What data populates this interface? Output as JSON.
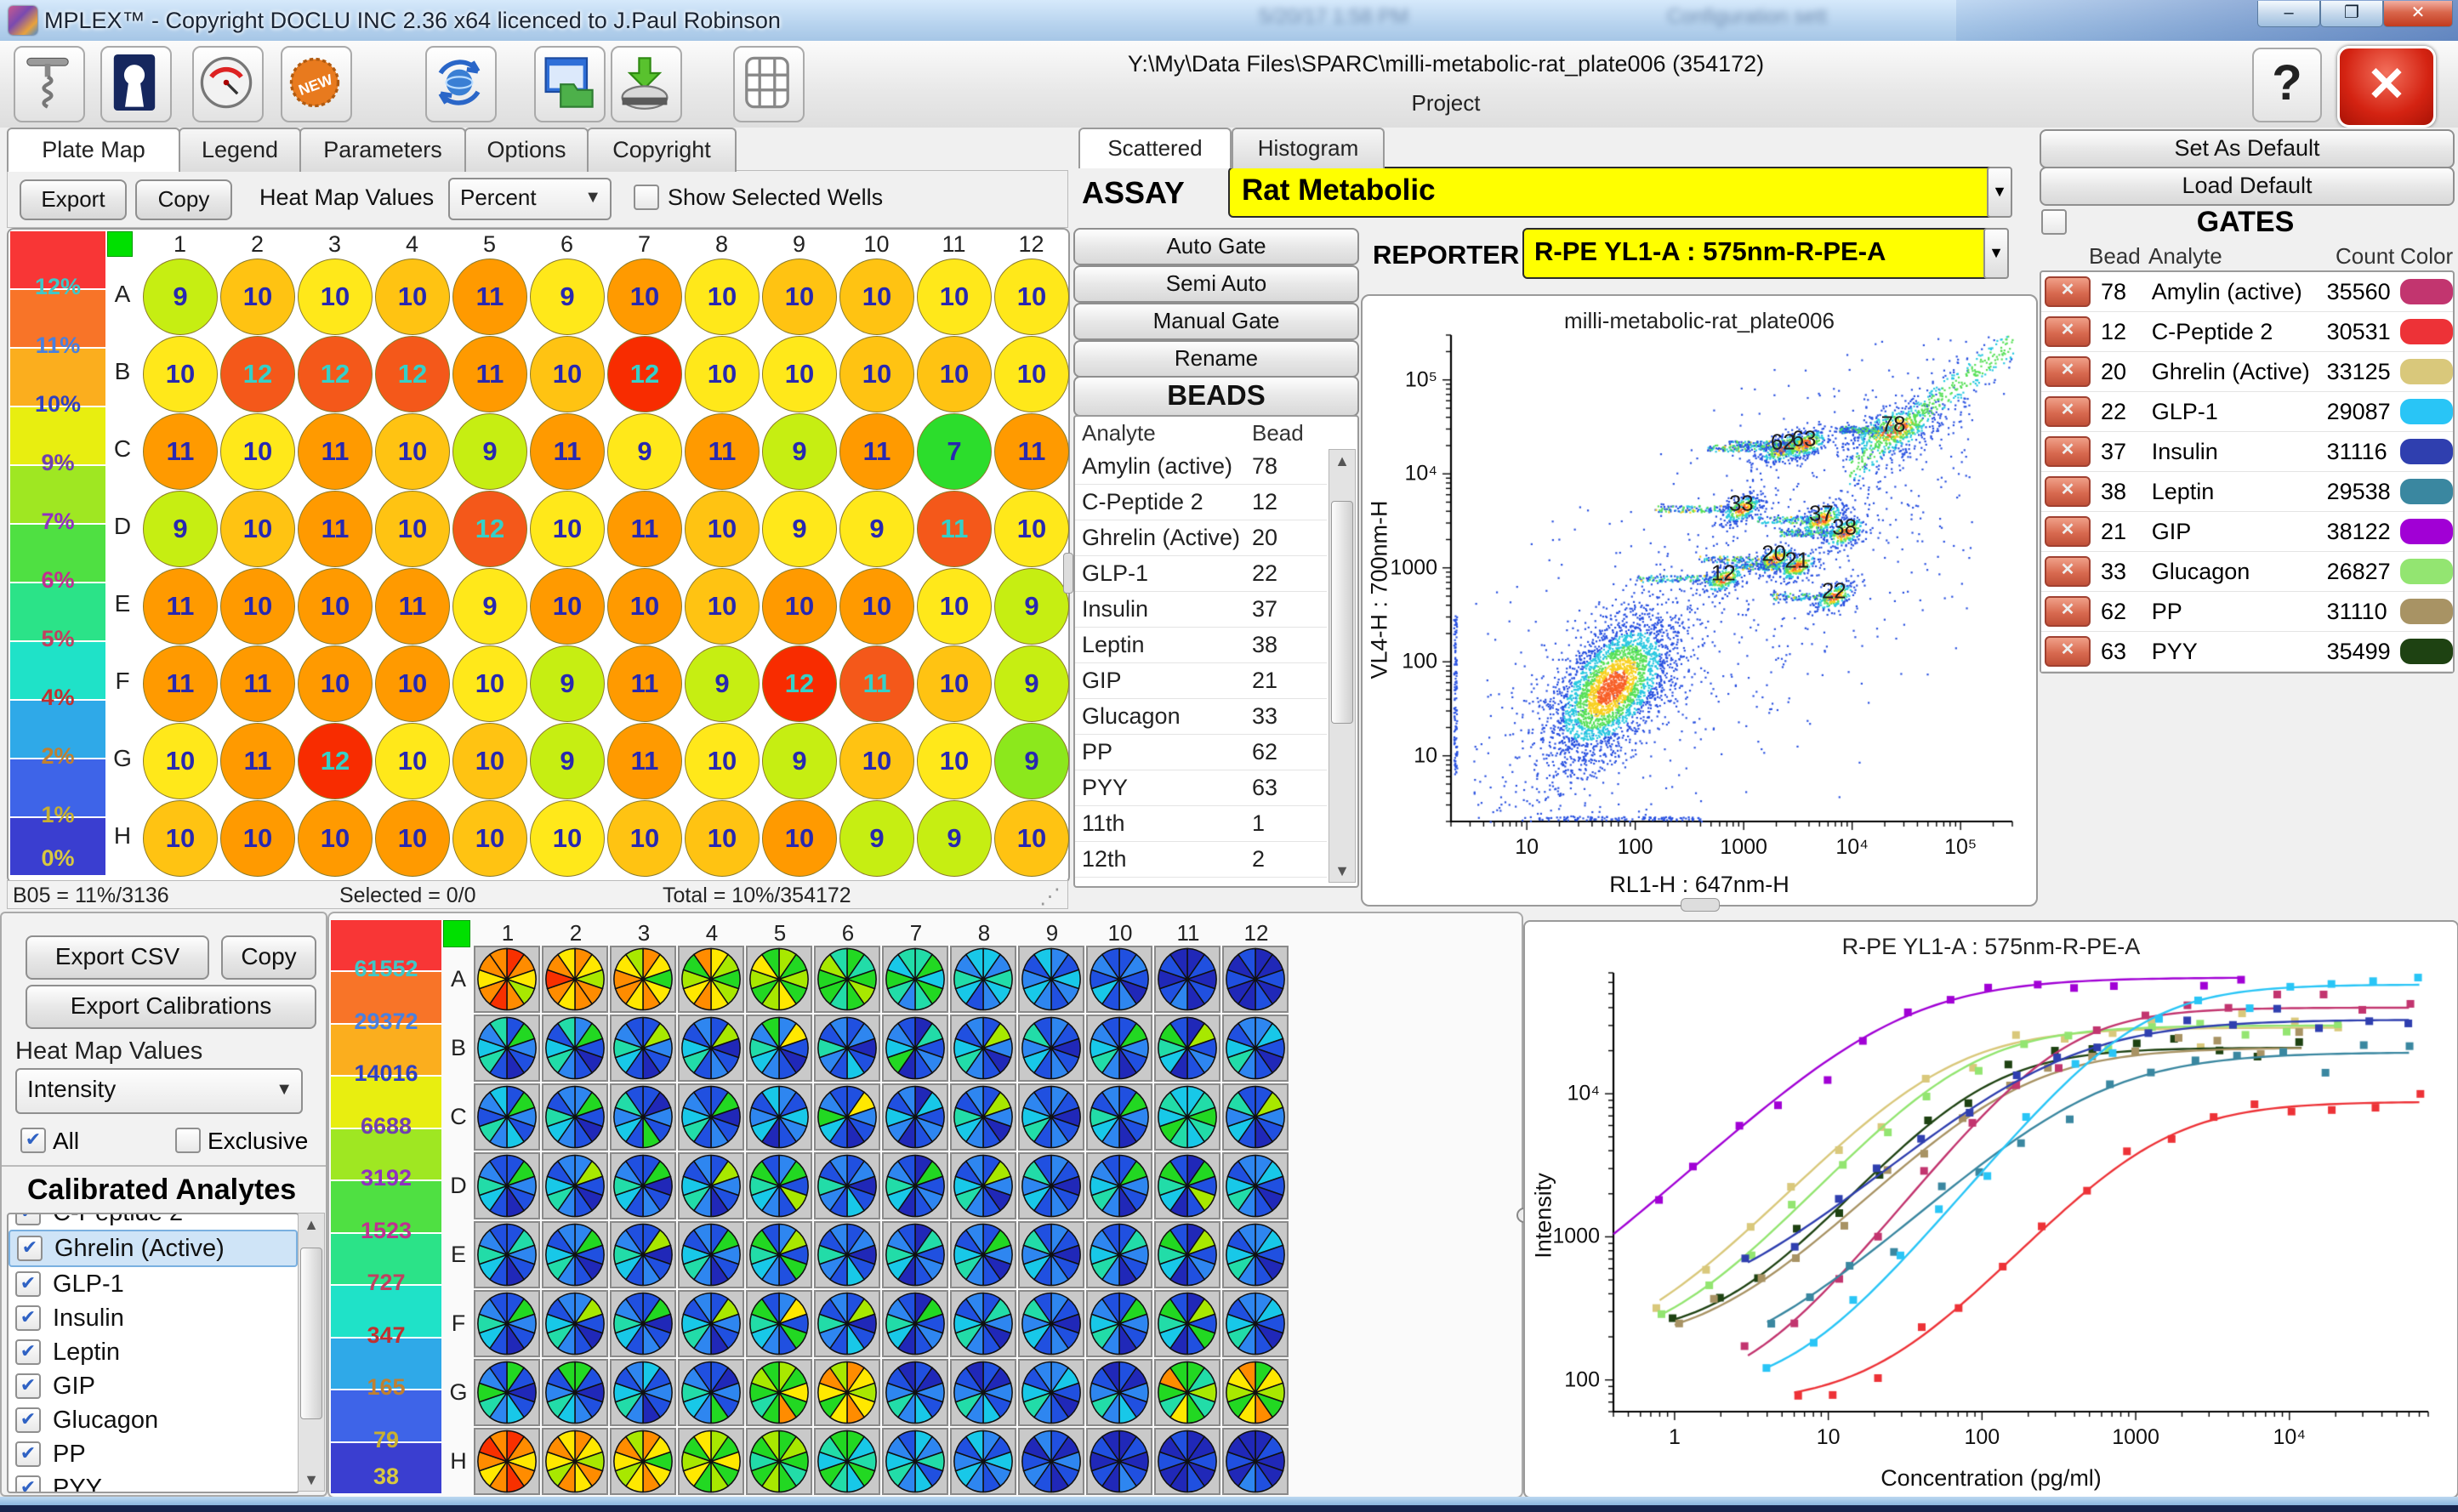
{
  "window": {
    "title": "MPLEX™ - Copyright DOCLU INC 2.36 x64 licenced to J.Paul Robinson",
    "minimize": "–",
    "maximize": "❐",
    "close": "✕"
  },
  "background_hints": {
    "time": "5/20/17 1:58 PM",
    "file": "Configuration sett"
  },
  "header": {
    "path": "Y:\\My\\Data Files\\SPARC\\milli-metabolic-rat_plate006 (354172)",
    "project_label": "Project",
    "help_label": "?",
    "close_label": "✕"
  },
  "toolbar_icons": [
    "corkscrew-icon",
    "keyhole-icon",
    "gauge-icon",
    "new-badge-icon",
    "sync-globe-icon",
    "window-folder-icon",
    "save-drive-icon",
    "plate-grid-icon"
  ],
  "scale_colors": [
    "#F83636",
    "#F87428",
    "#FBAE1E",
    "#E8EE10",
    "#9FE722",
    "#4FE042",
    "#2BE388",
    "#1FE2C8",
    "#2FA9E8",
    "#3E64E8",
    "#3A3ED0"
  ],
  "scale_fg": [
    "#3FC8C8",
    "#4880E0",
    "#3040C0",
    "#7040B0",
    "#9030C0",
    "#C03090",
    "#C04060",
    "#C03030",
    "#C08030",
    "#C8B030",
    "#D8C840"
  ],
  "plate_panel": {
    "tabs": [
      "Plate Map",
      "Legend",
      "Parameters",
      "Options",
      "Copyright"
    ],
    "active_tab": "Plate Map",
    "export_label": "Export",
    "copy_label": "Copy",
    "heatmap_label": "Heat Map Values",
    "heatmap_value": "Percent",
    "show_selected_label": "Show Selected Wells",
    "scale_labels": [
      "12%",
      "11%",
      "10%",
      "9%",
      "7%",
      "6%",
      "5%",
      "4%",
      "2%",
      "1%",
      "0%"
    ],
    "columns": [
      "1",
      "2",
      "3",
      "4",
      "5",
      "6",
      "7",
      "8",
      "9",
      "10",
      "11",
      "12"
    ],
    "rows": [
      "A",
      "B",
      "C",
      "D",
      "E",
      "F",
      "G",
      "H"
    ],
    "well_palette": {
      "g": "#C6EE12",
      "y": "#FFE81A",
      "a": "#FFC312",
      "o": "#FF9A00",
      "e": "#F4581A",
      "r": "#F82C00",
      "G": "#2CDD2C",
      "m": "#8CE81C"
    },
    "wells": {
      "A": [
        [
          9,
          "g"
        ],
        [
          10,
          "a"
        ],
        [
          10,
          "y"
        ],
        [
          10,
          "a"
        ],
        [
          11,
          "o"
        ],
        [
          9,
          "y"
        ],
        [
          10,
          "o"
        ],
        [
          10,
          "y"
        ],
        [
          10,
          "a"
        ],
        [
          10,
          "a"
        ],
        [
          10,
          "y"
        ],
        [
          10,
          "y"
        ]
      ],
      "B": [
        [
          10,
          "y"
        ],
        [
          12,
          "e"
        ],
        [
          12,
          "e"
        ],
        [
          12,
          "e"
        ],
        [
          11,
          "o"
        ],
        [
          10,
          "a"
        ],
        [
          12,
          "r"
        ],
        [
          10,
          "y"
        ],
        [
          10,
          "y"
        ],
        [
          10,
          "a"
        ],
        [
          10,
          "a"
        ],
        [
          10,
          "y"
        ]
      ],
      "C": [
        [
          11,
          "o"
        ],
        [
          10,
          "y"
        ],
        [
          11,
          "o"
        ],
        [
          10,
          "a"
        ],
        [
          9,
          "g"
        ],
        [
          11,
          "o"
        ],
        [
          9,
          "y"
        ],
        [
          11,
          "o"
        ],
        [
          9,
          "g"
        ],
        [
          11,
          "o"
        ],
        [
          7,
          "G"
        ],
        [
          11,
          "o"
        ]
      ],
      "D": [
        [
          9,
          "g"
        ],
        [
          10,
          "a"
        ],
        [
          11,
          "o"
        ],
        [
          10,
          "a"
        ],
        [
          12,
          "e"
        ],
        [
          10,
          "y"
        ],
        [
          11,
          "o"
        ],
        [
          10,
          "a"
        ],
        [
          9,
          "y"
        ],
        [
          9,
          "y"
        ],
        [
          11,
          "e"
        ],
        [
          10,
          "y"
        ]
      ],
      "E": [
        [
          11,
          "o"
        ],
        [
          10,
          "o"
        ],
        [
          10,
          "o"
        ],
        [
          11,
          "o"
        ],
        [
          9,
          "y"
        ],
        [
          10,
          "o"
        ],
        [
          10,
          "o"
        ],
        [
          10,
          "a"
        ],
        [
          10,
          "o"
        ],
        [
          10,
          "o"
        ],
        [
          10,
          "y"
        ],
        [
          9,
          "g"
        ]
      ],
      "F": [
        [
          11,
          "o"
        ],
        [
          11,
          "o"
        ],
        [
          10,
          "o"
        ],
        [
          10,
          "o"
        ],
        [
          10,
          "y"
        ],
        [
          9,
          "g"
        ],
        [
          11,
          "o"
        ],
        [
          9,
          "g"
        ],
        [
          12,
          "r"
        ],
        [
          11,
          "e"
        ],
        [
          10,
          "a"
        ],
        [
          9,
          "g"
        ]
      ],
      "G": [
        [
          10,
          "y"
        ],
        [
          11,
          "o"
        ],
        [
          12,
          "r"
        ],
        [
          10,
          "y"
        ],
        [
          10,
          "a"
        ],
        [
          9,
          "g"
        ],
        [
          11,
          "o"
        ],
        [
          10,
          "y"
        ],
        [
          9,
          "g"
        ],
        [
          10,
          "a"
        ],
        [
          10,
          "y"
        ],
        [
          9,
          "m"
        ]
      ],
      "H": [
        [
          10,
          "a"
        ],
        [
          10,
          "o"
        ],
        [
          10,
          "o"
        ],
        [
          10,
          "o"
        ],
        [
          10,
          "a"
        ],
        [
          10,
          "y"
        ],
        [
          10,
          "a"
        ],
        [
          10,
          "a"
        ],
        [
          10,
          "o"
        ],
        [
          9,
          "g"
        ],
        [
          9,
          "g"
        ],
        [
          10,
          "a"
        ]
      ]
    },
    "status": {
      "left": "B05 = 11%/3136",
      "mid": "Selected = 0/0",
      "right": "Total = 10%/354172"
    }
  },
  "gating": {
    "tabs": [
      "Scattered",
      "Histogram"
    ],
    "active_tab": "Scattered",
    "assay_label": "ASSAY",
    "assay_value": "Rat Metabolic",
    "buttons": [
      "Auto Gate",
      "Semi Auto",
      "Manual Gate",
      "Rename"
    ],
    "reporter_label": "REPORTER",
    "reporter_value": "R-PE YL1-A : 575nm-R-PE-A",
    "beads_title": "BEADS",
    "beads_columns": [
      "Analyte",
      "Bead"
    ],
    "beads": [
      [
        "Amylin (active)",
        "78"
      ],
      [
        "C-Peptide 2",
        "12"
      ],
      [
        "Ghrelin (Active)",
        "20"
      ],
      [
        "GLP-1",
        "22"
      ],
      [
        "Insulin",
        "37"
      ],
      [
        "Leptin",
        "38"
      ],
      [
        "GIP",
        "21"
      ],
      [
        "Glucagon",
        "33"
      ],
      [
        "PP",
        "62"
      ],
      [
        "PYY",
        "63"
      ],
      [
        "11th",
        "1"
      ],
      [
        "12th",
        "2"
      ]
    ]
  },
  "gates": {
    "set_as_default": "Set As Default",
    "load_default": "Load Default",
    "title": "GATES",
    "columns": [
      "Bead",
      "Analyte",
      "Count",
      "Color"
    ],
    "rows": [
      [
        78,
        "Amylin (active)",
        35560,
        "#C2356F"
      ],
      [
        12,
        "C-Peptide 2",
        30531,
        "#ED3237"
      ],
      [
        20,
        "Ghrelin (Active)",
        33125,
        "#D9C87B"
      ],
      [
        22,
        "GLP-1",
        29087,
        "#29C5F6"
      ],
      [
        37,
        "Insulin",
        31116,
        "#2F3FAF"
      ],
      [
        38,
        "Leptin",
        29538,
        "#3A87A0"
      ],
      [
        21,
        "GIP",
        38122,
        "#A100D5"
      ],
      [
        33,
        "Glucagon",
        26827,
        "#93E571"
      ],
      [
        62,
        "PP",
        31110,
        "#A89364"
      ],
      [
        63,
        "PYY",
        35499,
        "#1E4212"
      ]
    ]
  },
  "bottom_left": {
    "export_csv": "Export CSV",
    "copy": "Copy",
    "export_calibrations": "Export Calibrations",
    "heatmap_label": "Heat Map Values",
    "heatmap_value": "Intensity",
    "all_label": "All",
    "exclusive_label": "Exclusive",
    "all_checked": true,
    "exclusive_checked": false,
    "title": "Calibrated Analytes",
    "items": [
      {
        "label": "C-Peptide 2",
        "checked": true,
        "partial": true
      },
      {
        "label": "Ghrelin (Active)",
        "checked": true,
        "selected": true
      },
      {
        "label": "GLP-1",
        "checked": true
      },
      {
        "label": "Insulin",
        "checked": true
      },
      {
        "label": "Leptin",
        "checked": true
      },
      {
        "label": "GIP",
        "checked": true
      },
      {
        "label": "Glucagon",
        "checked": true
      },
      {
        "label": "PP",
        "checked": true
      },
      {
        "label": "PYY",
        "checked": true
      }
    ]
  },
  "intensity_scale": [
    "61552",
    "29372",
    "14016",
    "6688",
    "3192",
    "1523",
    "727",
    "347",
    "165",
    "79",
    "38"
  ],
  "pie_plate": {
    "columns": [
      "1",
      "2",
      "3",
      "4",
      "5",
      "6",
      "7",
      "8",
      "9",
      "10",
      "11",
      "12"
    ],
    "rows": [
      "A",
      "B",
      "C",
      "D",
      "E",
      "F",
      "G",
      "H"
    ],
    "palette": {
      "R": "#F83000",
      "O": "#FF8C00",
      "Y": "#FFE800",
      "L": "#A8E800",
      "G": "#22D822",
      "C": "#22DCA8",
      "T": "#18C8E8",
      "S": "#2E86F0",
      "B": "#2050E0",
      "D": "#2028B8"
    },
    "wells": {
      "A": [
        "ROYLOROYOO",
        "OYLOOYOROY",
        "OYGYOYOOYL",
        "YLGLYOYLGO",
        "LGLGYLGLYG",
        "GCGLGCGGLC",
        "CGTGCSCGTC",
        "TSCTSBTCST",
        "SBTSBSTSBT",
        "BSBDSBTBSB",
        "DBDBDSBDBD",
        "DDBDBDDBDB"
      ],
      "B": [
        "BGSBDBCTSC",
        "SGBDBSCTBC",
        "BLSBDBTCSB",
        "BLDBSBCTBS",
        "SYBDBSTCSG",
        "BSDBTBSCBS",
        "DCBSBDGTSB",
        "BLSDBSCTBS",
        "SBDBSBTSCB",
        "BGSBDSCTSB",
        "DLBSBDTCGB",
        "STBDBSCTBS"
      ],
      "C": [
        "BGSBTSCBST",
        "SGBDBSTCBS",
        "BDSBGBTSCB",
        "BGDBSBCTSB",
        "SBTSBDTSBT",
        "BYSBDBTGSB",
        "DTBSBDSTBS",
        "BLSDBSTCBS",
        "SBDBSBCTSB",
        "BGSBDSTCBS",
        "TCGCTCGTCT",
        "BLSBDBTSCB"
      ],
      "D": [
        "BGSBDBTCSB",
        "SLBDBSCTBS",
        "BGDBSBTCSB",
        "BLSBDSCTBS",
        "SGBLBSTCGB",
        "BSDBTBSCBS",
        "DGBSBDTCSB",
        "BLSDBSCTBS",
        "SBDBSBTSCB",
        "BGSBDSCTSB",
        "DGBLBDTCGB",
        "STBDBSCTBS"
      ],
      "E": [
        "BCSBDBTCSB",
        "SGBDBSCTBS",
        "BLDBSBTCSB",
        "BGSBDSCTBS",
        "SLBGBSTCGB",
        "BSDBTBSCBS",
        "DCBSBDTCSB",
        "BGSDBSCTBS",
        "SBDBSBTSCB",
        "BCSBDSCTSB",
        "DLBSBDTCGB",
        "STBDBSCTBS"
      ],
      "F": [
        "BGSBDBTCSB",
        "SLBDBSCTBS",
        "BGDBSBTCSB",
        "BLSBDSCTBS",
        "SYBGBSTCGB",
        "BLDBTBSCBS",
        "DGBSBDTCSB",
        "BCSDBSCTBS",
        "SBDBSBTSCB",
        "BGSBDSCTSB",
        "DLBGBDTCGB",
        "STBDBSCTBS"
      ],
      "G": [
        "GBDBTSCGSB",
        "GBDBSTCSBG",
        "TBSBDSCTBS",
        "BDSBGSTCSB",
        "LGYGOGCGLG",
        "OYLYOYGYOL",
        "BDSBTSCSBD",
        "BDSBTSCSBD",
        "STBDBSCTBS",
        "BDSBTSCSBD",
        "GCLCGYCGOG",
        "GYLGOYGLYO"
      ],
      "H": [
        "ROYOROYORO",
        "OYLOYOLYOY",
        "OYGYOYLYOL",
        "LGYGLGYLGY",
        "GLGCGLGCGL",
        "GTCGTCGTCG",
        "TSCBTSCTSB",
        "SBTSBSTSBT",
        "BDSBDBSBDS",
        "DBDBSDBDBD",
        "DDBDBDDBDB",
        "DBDDBSDBDD"
      ]
    }
  },
  "chart_data": [
    {
      "type": "scatter",
      "title": "milli-metabolic-rat_plate006",
      "xlabel": "RL1-H : 647nm-H",
      "ylabel": "VL4-H : 700nm-H",
      "xlim": [
        2,
        300000
      ],
      "ylim": [
        2,
        300000
      ],
      "xticks": [
        {
          "t": "10",
          "v": 10
        },
        {
          "t": "100",
          "v": 100
        },
        {
          "t": "1000",
          "v": 1000
        },
        {
          "t": "10⁴",
          "v": 10000
        },
        {
          "t": "10⁵",
          "v": 100000
        }
      ],
      "yticks": [
        {
          "t": "10",
          "v": 10
        },
        {
          "t": "100",
          "v": 100
        },
        {
          "t": "1000",
          "v": 1000
        },
        {
          "t": "10⁴",
          "v": 10000
        },
        {
          "t": "10⁵",
          "v": 100000
        }
      ],
      "noise": 900,
      "clusters": [
        {
          "label": "",
          "x": 60,
          "y": 55,
          "n": 3000,
          "sx": 0.3,
          "sy": 0.4,
          "core": true
        },
        {
          "label": "12",
          "x": 650,
          "y": 780,
          "n": 360,
          "sx": 0.1,
          "sy": 0.08,
          "tail": 0.8
        },
        {
          "label": "20",
          "x": 1900,
          "y": 1250,
          "n": 340,
          "sx": 0.1,
          "sy": 0.08,
          "tail": 0.7
        },
        {
          "label": "21",
          "x": 3100,
          "y": 1050,
          "n": 340,
          "sx": 0.1,
          "sy": 0.08,
          "tail": 0.6
        },
        {
          "label": "22",
          "x": 6800,
          "y": 500,
          "n": 340,
          "sx": 0.1,
          "sy": 0.08,
          "tail": 0.6
        },
        {
          "label": "33",
          "x": 950,
          "y": 4300,
          "n": 400,
          "sx": 0.1,
          "sy": 0.08,
          "tail": 0.8
        },
        {
          "label": "37",
          "x": 5200,
          "y": 3300,
          "n": 400,
          "sx": 0.11,
          "sy": 0.09,
          "tail": 0.6
        },
        {
          "label": "38",
          "x": 8500,
          "y": 2400,
          "n": 400,
          "sx": 0.11,
          "sy": 0.09,
          "tail": 0.6
        },
        {
          "label": "62",
          "x": 2300,
          "y": 19000,
          "n": 430,
          "sx": 0.12,
          "sy": 0.09,
          "tail": 0.7
        },
        {
          "label": "63",
          "x": 3600,
          "y": 21000,
          "n": 430,
          "sx": 0.12,
          "sy": 0.09,
          "tail": 0.7
        },
        {
          "label": "78",
          "x": 24000,
          "y": 30000,
          "n": 720,
          "sx": 0.22,
          "sy": 0.15,
          "tail": 0.5
        },
        {
          "label": "",
          "type": "diag",
          "x": 70000,
          "y": 70000,
          "n": 560,
          "sx": 0.4,
          "sy": 0.14
        },
        {
          "label": "",
          "type": "edge-left",
          "n": 130
        },
        {
          "label": "",
          "type": "edge-bottom",
          "n": 110
        }
      ]
    },
    {
      "type": "line-scatter",
      "title": "R-PE YL1-A : 575nm-R-PE-A",
      "xlabel": "Concentration (pg/ml)",
      "ylabel": "Intensity",
      "xlim": [
        0.4,
        80000
      ],
      "ylim": [
        60,
        70000
      ],
      "xticks": [
        {
          "t": "1",
          "v": 1
        },
        {
          "t": "10",
          "v": 10
        },
        {
          "t": "100",
          "v": 100
        },
        {
          "t": "1000",
          "v": 1000
        },
        {
          "t": "10⁴",
          "v": 10000
        }
      ],
      "yticks": [
        {
          "t": "100",
          "v": 100
        },
        {
          "t": "1000",
          "v": 1000
        },
        {
          "t": "10⁴",
          "v": 10000
        }
      ],
      "points_per_series": 16,
      "series": [
        {
          "name": "GIP",
          "color": "#A100D5",
          "base": 130,
          "top": 65000,
          "ec50": 28,
          "hill": 1.0,
          "xmin": 0.4,
          "xmax": 5000
        },
        {
          "name": "Ghrelin (Active)",
          "color": "#D9C87B",
          "base": 140,
          "top": 29000,
          "ec50": 55,
          "hill": 1.15,
          "xmin": 0.8,
          "xmax": 20000
        },
        {
          "name": "Glucagon",
          "color": "#93E571",
          "base": 155,
          "top": 30000,
          "ec50": 75,
          "hill": 1.2,
          "xmin": 0.8,
          "xmax": 20000
        },
        {
          "name": "PYY",
          "color": "#1E4212",
          "base": 195,
          "top": 21000,
          "ec50": 95,
          "hill": 1.25,
          "xmin": 1,
          "xmax": 12000
        },
        {
          "name": "PP",
          "color": "#A89364",
          "base": 165,
          "top": 21000,
          "ec50": 160,
          "hill": 1.1,
          "xmin": 1,
          "xmax": 12000
        },
        {
          "name": "Amylin (active)",
          "color": "#C2356F",
          "base": 75,
          "top": 40000,
          "ec50": 320,
          "hill": 1.35,
          "xmin": 3,
          "xmax": 60000
        },
        {
          "name": "Insulin",
          "color": "#2F3FAF",
          "base": 255,
          "top": 33000,
          "ec50": 300,
          "hill": 0.95,
          "xmin": 3,
          "xmax": 60000
        },
        {
          "name": "Leptin",
          "color": "#3A87A0",
          "base": 105,
          "top": 19500,
          "ec50": 520,
          "hill": 1.0,
          "xmin": 4,
          "xmax": 60000
        },
        {
          "name": "GLP-1",
          "color": "#29C5F6",
          "base": 78,
          "top": 58000,
          "ec50": 1000,
          "hill": 1.3,
          "xmin": 4,
          "xmax": 70000
        },
        {
          "name": "C-Peptide 2",
          "color": "#ED3237",
          "base": 68,
          "top": 8800,
          "ec50": 1300,
          "hill": 1.2,
          "xmin": 6,
          "xmax": 70000
        }
      ]
    }
  ]
}
